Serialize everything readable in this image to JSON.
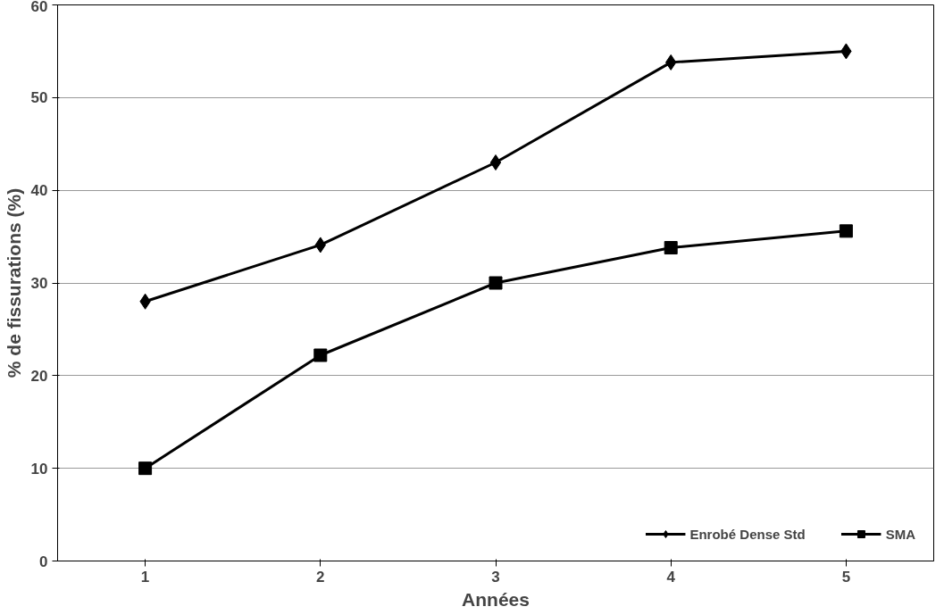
{
  "chart_data": {
    "type": "line",
    "xlabel": "Années",
    "ylabel": "% de fissurations (%)",
    "categories": [
      "1",
      "2",
      "3",
      "4",
      "5"
    ],
    "series": [
      {
        "name": "Enrobé Dense Std",
        "color": "#000000",
        "marker": "diamond",
        "values": [
          28.0,
          34.1,
          43.0,
          53.8,
          55.0
        ]
      },
      {
        "name": "SMA",
        "color": "#000000",
        "marker": "square",
        "values": [
          10.0,
          22.2,
          30.0,
          33.8,
          35.6
        ]
      }
    ],
    "ylim": [
      0,
      60
    ],
    "yticks": [
      0,
      10,
      20,
      30,
      40,
      50,
      60
    ],
    "grid": "y",
    "legend": "bottom right",
    "line_style": "solid"
  }
}
